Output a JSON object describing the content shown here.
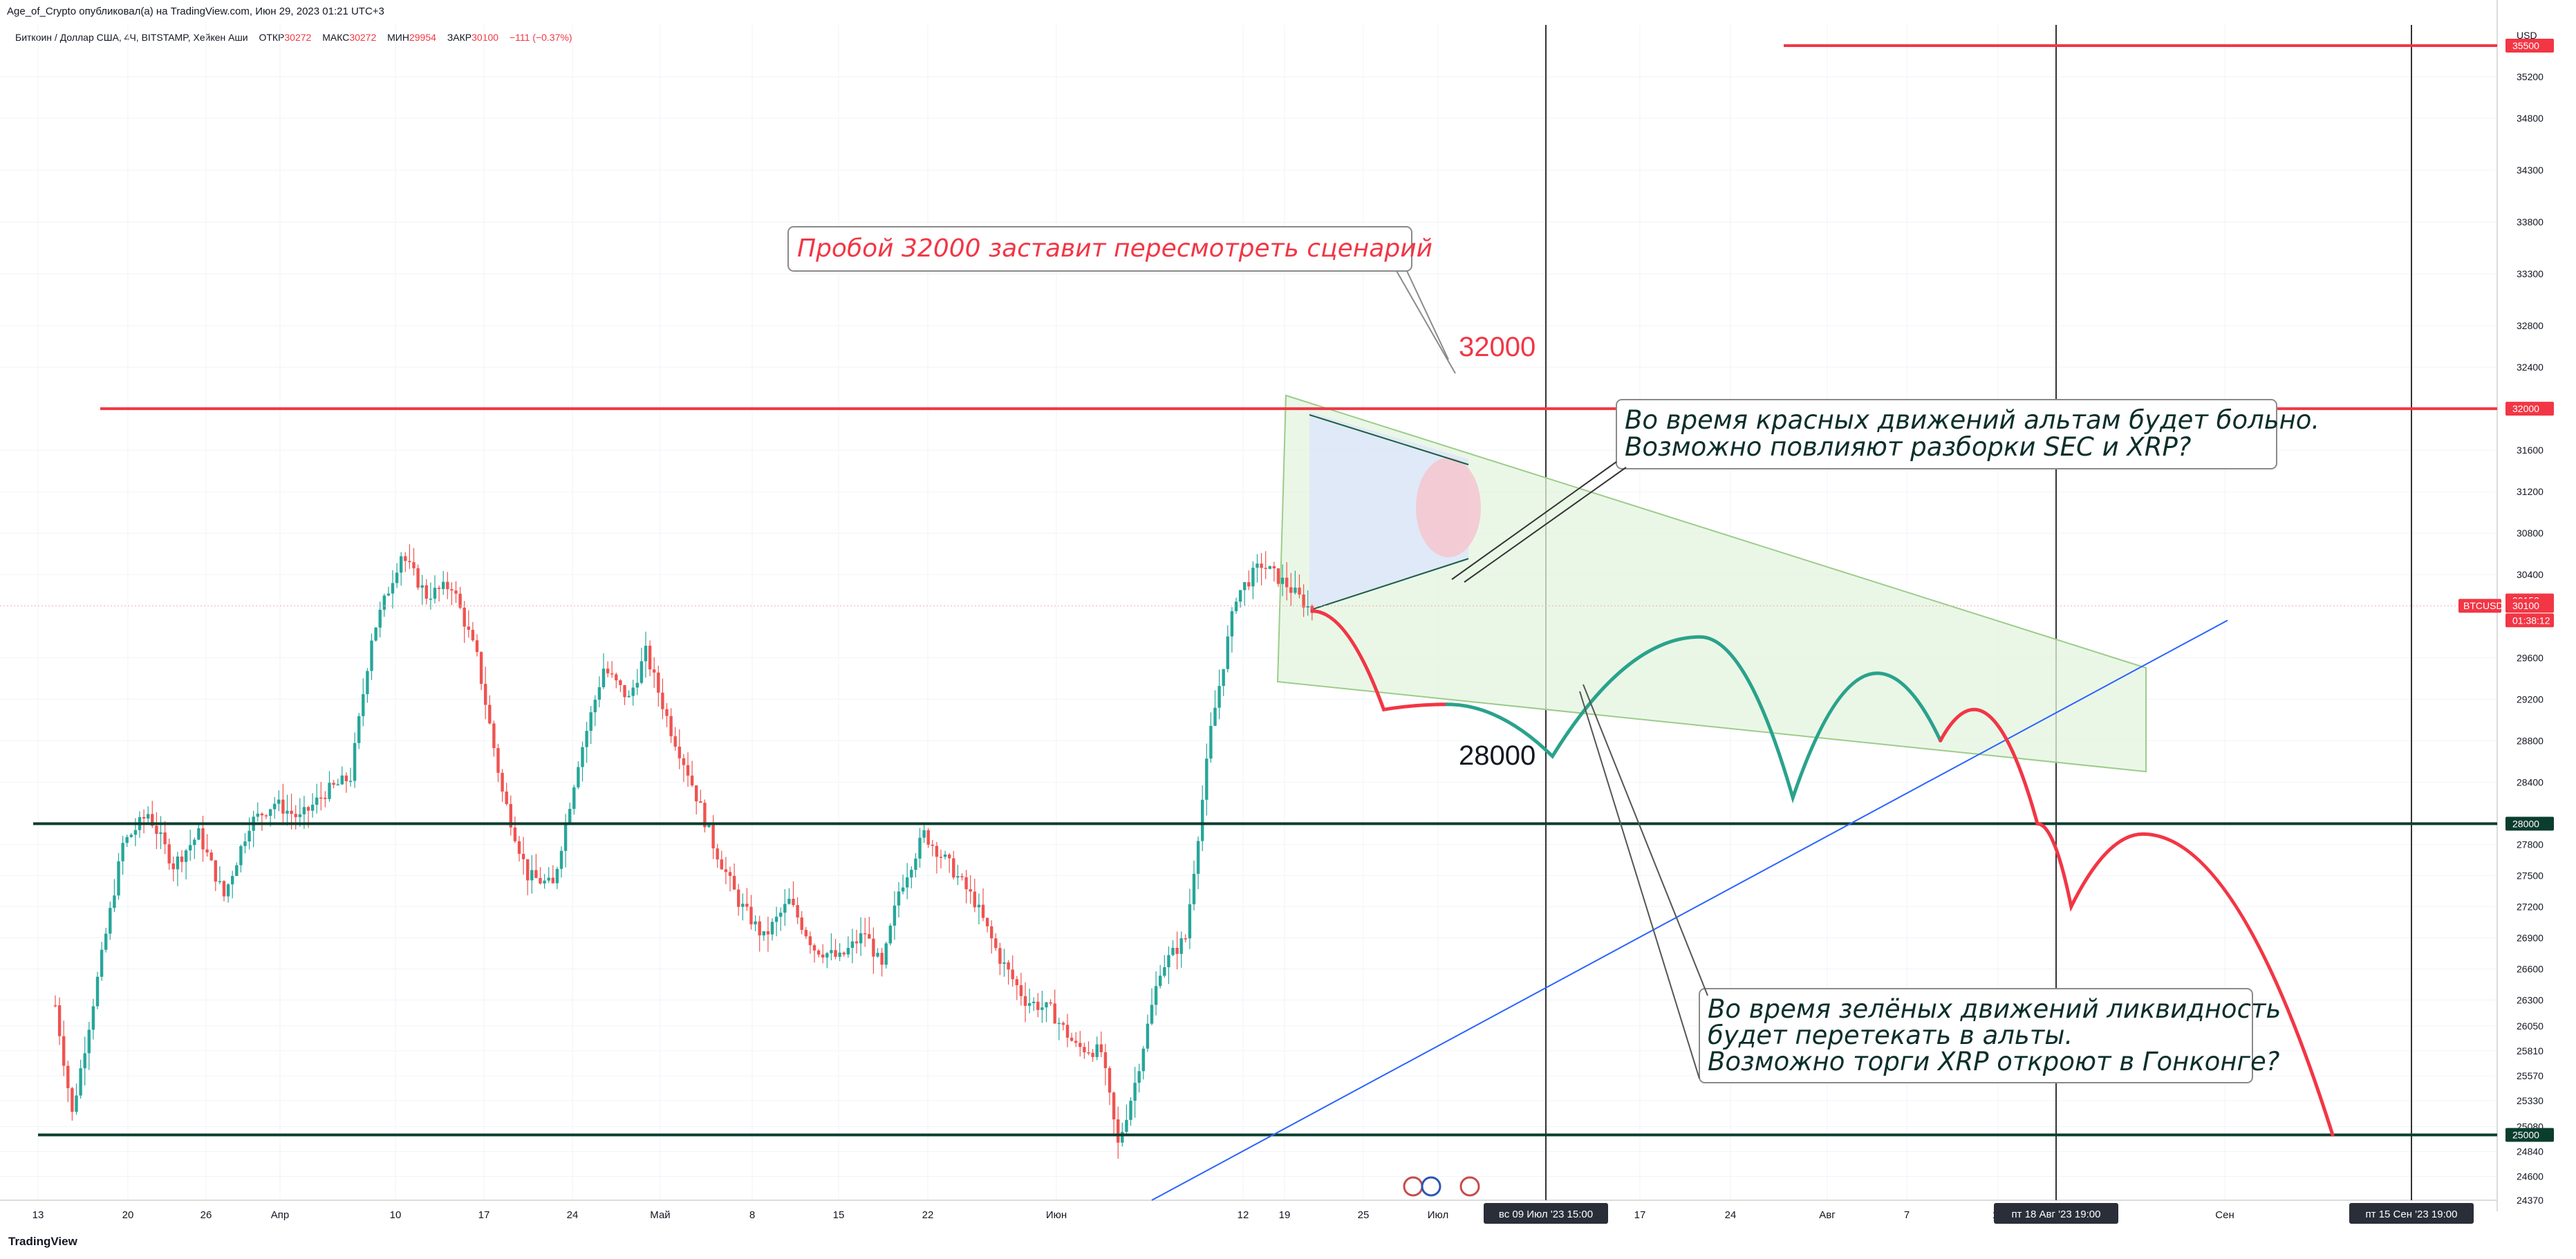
{
  "header": {
    "published": "Age_of_Crypto опубликовал(а) на TradingView.com, Июн 29, 2023 01:21 UTC+3"
  },
  "symbol_bar": {
    "title": "Биткоин / Доллар США, 4Ч, BITSTAMP, Хейкен Аши",
    "open_label": "ОТКР",
    "open": "30272",
    "high_label": "МАКС",
    "high": "30272",
    "low_label": "МИН",
    "low": "29954",
    "close_label": "ЗАКР",
    "close": "30100",
    "change": "−111 (−0.37%)"
  },
  "footer": {
    "brand": "TradingView"
  },
  "colors": {
    "bull": "#26a69a",
    "bear": "#ef5350",
    "red_line": "#f23645",
    "dark_line": "#0b3d2e",
    "blue_line": "#2962ff",
    "green_path": "#2aa28b",
    "wedge_fill": "#e3f4df",
    "wedge_stroke": "#9ccc8a"
  },
  "chart_data": {
    "type": "candlestick",
    "symbol": "BTCUSD",
    "currency": "USD",
    "y_axis": {
      "ticks": [
        35200,
        34800,
        34300,
        33800,
        33300,
        32800,
        32400,
        31600,
        31200,
        30800,
        30400,
        29600,
        29200,
        28800,
        28400,
        27800,
        27500,
        27200,
        26900,
        26600,
        26300,
        26050,
        25810,
        25570,
        25330,
        25080,
        24840,
        24600,
        24370
      ],
      "ylim": [
        24370,
        35700
      ]
    },
    "x_axis": {
      "ticks": [
        "13",
        "20",
        "26",
        "Апр",
        "10",
        "17",
        "24",
        "Май",
        "8",
        "15",
        "22",
        "Июн",
        "12",
        "19",
        "25",
        "Июл",
        "17",
        "24",
        "Авг",
        "7",
        "14",
        "Сен"
      ]
    },
    "price_badges": [
      {
        "label": "35500",
        "value": 35500
      },
      {
        "label": "32000",
        "value": 32000
      },
      {
        "label": "30152",
        "value": 30152
      },
      {
        "label": "30100",
        "value": 30100
      },
      {
        "label": "01:38:12",
        "value": 29960
      },
      {
        "label": "28000",
        "value": 28000
      },
      {
        "label": "25000",
        "value": 25000
      }
    ],
    "symbol_badge": "BTCUSD",
    "time_badges": [
      {
        "label": "вс 09 Июл '23   15:00"
      },
      {
        "label": "пт 18 Авг '23   19:00"
      },
      {
        "label": "пт 15 Сен '23   19:00"
      }
    ],
    "levels": [
      {
        "label": "32000",
        "value": 32000
      },
      {
        "label": "28000",
        "value": 28000
      },
      {
        "label": "25000",
        "value": 25000
      },
      {
        "label": "",
        "value": 35500
      }
    ],
    "price_path": [
      [
        0,
        26250
      ],
      [
        4,
        25200
      ],
      [
        10,
        26500
      ],
      [
        16,
        27800
      ],
      [
        22,
        28100
      ],
      [
        28,
        27600
      ],
      [
        34,
        27900
      ],
      [
        40,
        27300
      ],
      [
        46,
        28000
      ],
      [
        52,
        28200
      ],
      [
        58,
        28050
      ],
      [
        64,
        28300
      ],
      [
        70,
        28450
      ],
      [
        75,
        29800
      ],
      [
        82,
        30600
      ],
      [
        88,
        30200
      ],
      [
        94,
        30300
      ],
      [
        100,
        29600
      ],
      [
        106,
        28300
      ],
      [
        112,
        27500
      ],
      [
        118,
        27400
      ],
      [
        124,
        28600
      ],
      [
        130,
        29500
      ],
      [
        136,
        29200
      ],
      [
        140,
        29650
      ],
      [
        146,
        28900
      ],
      [
        150,
        28500
      ],
      [
        156,
        27800
      ],
      [
        162,
        27250
      ],
      [
        168,
        26900
      ],
      [
        174,
        27250
      ],
      [
        180,
        26800
      ],
      [
        186,
        26700
      ],
      [
        192,
        26950
      ],
      [
        196,
        26600
      ],
      [
        200,
        27350
      ],
      [
        206,
        27900
      ],
      [
        212,
        27600
      ],
      [
        218,
        27250
      ],
      [
        224,
        26700
      ],
      [
        230,
        26300
      ],
      [
        236,
        26200
      ],
      [
        242,
        25850
      ],
      [
        248,
        25800
      ],
      [
        252,
        24900
      ],
      [
        256,
        25500
      ],
      [
        262,
        26600
      ],
      [
        268,
        26900
      ],
      [
        274,
        28900
      ],
      [
        280,
        30200
      ],
      [
        286,
        30500
      ],
      [
        292,
        30300
      ],
      [
        298,
        30050
      ]
    ],
    "scenario_path_red_1": [
      [
        298,
        30050
      ],
      [
        315,
        29100
      ],
      [
        330,
        29150
      ]
    ],
    "scenario_path_green": [
      [
        330,
        29150
      ],
      [
        355,
        28650
      ],
      [
        390,
        29800
      ],
      [
        412,
        28250
      ],
      [
        432,
        29450
      ],
      [
        447,
        28800
      ]
    ],
    "scenario_path_red_2": [
      [
        447,
        28800
      ],
      [
        455,
        29100
      ],
      [
        470,
        28000
      ],
      [
        478,
        27200
      ],
      [
        495,
        27900
      ],
      [
        540,
        25000
      ]
    ]
  },
  "annotations": {
    "breakout": "Пробой 32000 заставит пересмотреть сценарий",
    "level_32000": "32000",
    "level_28000": "28000",
    "red_moves_1": "Во время красных движений альтам будет больно.",
    "red_moves_2": "Возможно повлияют разборки SEC и XRP?",
    "green_moves_1": "Во время зелёных движений ликвидность",
    "green_moves_2": "будет перетекать в альты.",
    "green_moves_3": "Возможно торги XRP откроют в Гонконге?"
  }
}
